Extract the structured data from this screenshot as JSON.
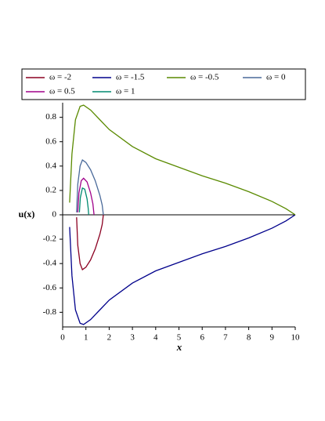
{
  "chart_data": {
    "type": "line",
    "xlabel": "x",
    "ylabel": "u(x)",
    "xlim": [
      0,
      10
    ],
    "ylim": [
      -0.92,
      0.92
    ],
    "xticks": [
      0,
      1,
      2,
      3,
      4,
      5,
      6,
      7,
      8,
      9,
      10
    ],
    "yticks": [
      -0.8,
      -0.6,
      -0.4,
      -0.2,
      0,
      0.2,
      0.4,
      0.6,
      0.8
    ],
    "series": [
      {
        "name": "ω = -2",
        "color": "#8b0021",
        "x": [
          0.6,
          0.65,
          0.75,
          0.85,
          1,
          1.2,
          1.4,
          1.6,
          1.7,
          1.75
        ],
        "values": [
          -0.02,
          -0.25,
          -0.4,
          -0.45,
          -0.43,
          -0.37,
          -0.28,
          -0.16,
          -0.08,
          0
        ]
      },
      {
        "name": "ω = -1.5",
        "color": "#00008b",
        "x": [
          0.3,
          0.4,
          0.55,
          0.75,
          0.9,
          1.2,
          1.6,
          2,
          3,
          4,
          5,
          6,
          7,
          8,
          9,
          9.6,
          10
        ],
        "values": [
          -0.1,
          -0.5,
          -0.78,
          -0.89,
          -0.9,
          -0.86,
          -0.78,
          -0.7,
          -0.56,
          -0.46,
          -0.39,
          -0.32,
          -0.26,
          -0.19,
          -0.11,
          -0.05,
          0
        ]
      },
      {
        "name": "ω = -0.5",
        "color": "#5a8a00",
        "x": [
          0.3,
          0.4,
          0.55,
          0.75,
          0.9,
          1.2,
          1.6,
          2,
          3,
          4,
          5,
          6,
          7,
          8,
          9,
          9.6,
          10
        ],
        "values": [
          0.1,
          0.5,
          0.78,
          0.89,
          0.9,
          0.86,
          0.78,
          0.7,
          0.56,
          0.46,
          0.39,
          0.32,
          0.26,
          0.19,
          0.11,
          0.05,
          0
        ]
      },
      {
        "name": "ω = 0",
        "color": "#4a6a9a",
        "x": [
          0.6,
          0.65,
          0.75,
          0.85,
          1,
          1.2,
          1.4,
          1.6,
          1.7,
          1.75
        ],
        "values": [
          0.02,
          0.25,
          0.4,
          0.45,
          0.43,
          0.37,
          0.28,
          0.16,
          0.08,
          0
        ]
      },
      {
        "name": "ω = 0.5",
        "color": "#a0008a",
        "x": [
          0.65,
          0.7,
          0.8,
          0.9,
          1.05,
          1.2,
          1.3,
          1.35
        ],
        "values": [
          0.02,
          0.18,
          0.28,
          0.3,
          0.27,
          0.18,
          0.09,
          0
        ]
      },
      {
        "name": "ω = 1",
        "color": "#008a70",
        "x": [
          0.72,
          0.76,
          0.85,
          0.95,
          1.05,
          1.1,
          1.12
        ],
        "values": [
          0.02,
          0.14,
          0.22,
          0.21,
          0.13,
          0.05,
          0
        ]
      }
    ]
  }
}
